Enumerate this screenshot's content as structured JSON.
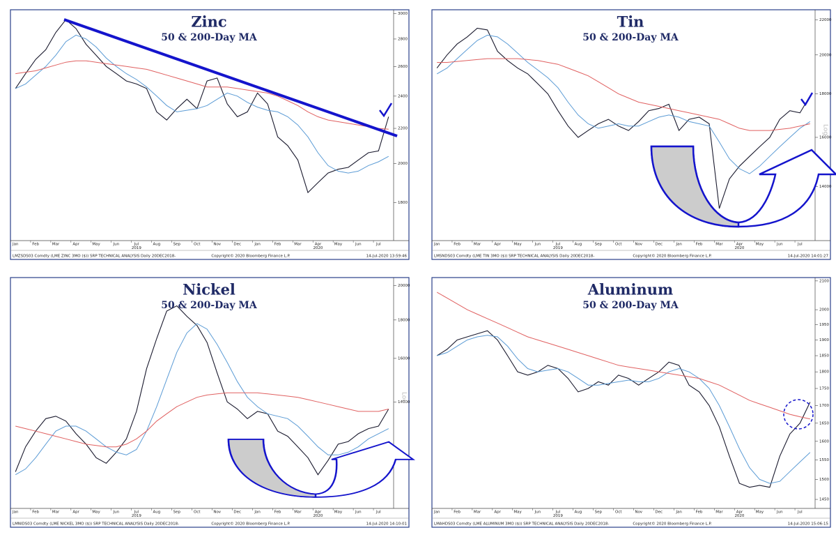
{
  "chart_data": [
    {
      "type": "line",
      "title": "Zinc",
      "subtitle": "50 & 200-Day MA",
      "log": true,
      "categories": [
        "Jan",
        null,
        "Feb",
        null,
        "Mar",
        null,
        "Apr",
        null,
        "May",
        null,
        "Jun",
        null,
        "Jul",
        null,
        "Aug",
        null,
        "Sep",
        null,
        "Oct",
        null,
        "Nov",
        null,
        "Dec",
        null,
        "Jan",
        null,
        "Feb",
        null,
        "Mar",
        null,
        "Apr",
        null,
        "May",
        null,
        "Jun",
        null,
        "Jul",
        null
      ],
      "year_labels": [
        "2019",
        "2020"
      ],
      "ylim": [
        1625,
        3030
      ],
      "yticks": [
        1800,
        2000,
        2200,
        2400,
        2600,
        2800,
        3000
      ],
      "series": [
        {
          "color": "#1a1a2e",
          "values": [
            2450,
            2550,
            2650,
            2720,
            2850,
            2950,
            2880,
            2760,
            2680,
            2600,
            2550,
            2500,
            2480,
            2450,
            2300,
            2250,
            2320,
            2380,
            2320,
            2500,
            2520,
            2350,
            2270,
            2300,
            2420,
            2350,
            2150,
            2100,
            2020,
            1850,
            1900,
            1950,
            1970,
            1980,
            2020,
            2060,
            2070,
            2270
          ]
        },
        {
          "color": "#5b9bd5",
          "values": [
            2450,
            2480,
            2540,
            2600,
            2680,
            2780,
            2830,
            2800,
            2740,
            2660,
            2600,
            2550,
            2510,
            2460,
            2400,
            2340,
            2300,
            2310,
            2320,
            2340,
            2380,
            2420,
            2400,
            2360,
            2330,
            2310,
            2300,
            2270,
            2220,
            2150,
            2060,
            1990,
            1960,
            1950,
            1960,
            1990,
            2010,
            2040
          ]
        },
        {
          "color": "#e06060",
          "values": [
            2550,
            2560,
            2570,
            2590,
            2610,
            2630,
            2640,
            2640,
            2630,
            2620,
            2610,
            2600,
            2590,
            2580,
            2560,
            2540,
            2520,
            2500,
            2480,
            2460,
            2460,
            2460,
            2450,
            2440,
            2430,
            2420,
            2400,
            2370,
            2340,
            2300,
            2270,
            2250,
            2240,
            2230,
            2220,
            2210,
            2200,
            2195
          ]
        }
      ],
      "footer": [
        "LMZSDS03 Comdty (LME ZINC 3MO ($)) SRP TECHNICAL ANALYSIS Daily 20DEC2018-",
        "Copyright© 2020 Bloomberg Finance L.P.",
        "14-Jul-2020 13:59:46"
      ]
    },
    {
      "type": "line",
      "title": "Tin",
      "subtitle": "50 & 200-Day MA",
      "log": true,
      "axis_note": "Log",
      "categories": [
        "Jan",
        null,
        "Feb",
        null,
        "Mar",
        null,
        "Apr",
        null,
        "May",
        null,
        "Jun",
        null,
        "Jul",
        null,
        "Aug",
        null,
        "Sep",
        null,
        "Oct",
        null,
        "Nov",
        null,
        "Dec",
        null,
        "Jan",
        null,
        "Feb",
        null,
        "Mar",
        null,
        "Apr",
        null,
        "May",
        null,
        "Jun",
        null,
        "Jul",
        null
      ],
      "year_labels": [
        "2019",
        "2020"
      ],
      "ylim": [
        12100,
        22600
      ],
      "yticks": [
        14000,
        16000,
        18000,
        20000,
        22000
      ],
      "series": [
        {
          "color": "#1a1a2e",
          "values": [
            19300,
            20000,
            20600,
            21000,
            21500,
            21400,
            20200,
            19700,
            19300,
            19000,
            18500,
            18000,
            17200,
            16500,
            16000,
            16300,
            16600,
            16800,
            16500,
            16300,
            16700,
            17200,
            17300,
            17500,
            16300,
            16800,
            16900,
            16600,
            13200,
            14300,
            14800,
            15200,
            15600,
            16000,
            16800,
            17200,
            17100,
            17900
          ]
        },
        {
          "color": "#5b9bd5",
          "values": [
            19000,
            19300,
            19800,
            20300,
            20800,
            21100,
            21000,
            20600,
            20100,
            19600,
            19200,
            18800,
            18300,
            17600,
            17000,
            16600,
            16400,
            16500,
            16600,
            16500,
            16500,
            16700,
            16900,
            17000,
            16900,
            16700,
            16600,
            16500,
            15800,
            15100,
            14700,
            14500,
            14800,
            15200,
            15600,
            16000,
            16400,
            16700
          ]
        },
        {
          "color": "#e06060",
          "values": [
            19600,
            19600,
            19650,
            19700,
            19750,
            19800,
            19800,
            19800,
            19800,
            19750,
            19700,
            19600,
            19500,
            19300,
            19100,
            18900,
            18600,
            18300,
            18000,
            17800,
            17600,
            17500,
            17400,
            17300,
            17200,
            17100,
            17000,
            16900,
            16800,
            16600,
            16400,
            16300,
            16300,
            16300,
            16350,
            16400,
            16500,
            16600
          ]
        }
      ],
      "footer": [
        "LMSNDS03 Comdty (LME TIN 3MO ($)) SRP TECHNICAL ANALYSIS Daily 20DEC2018-",
        "Copyright© 2020 Bloomberg Finance L.P.",
        "14-Jul-2020 14:01:27"
      ]
    },
    {
      "type": "line",
      "title": "Nickel",
      "subtitle": "50 & 200-Day MA",
      "log": true,
      "axis_note": "Log",
      "categories": [
        "Jan",
        null,
        "Feb",
        null,
        "Mar",
        null,
        "Apr",
        null,
        "May",
        null,
        "Jun",
        null,
        "Jul",
        null,
        "Aug",
        null,
        "Sep",
        null,
        "Oct",
        null,
        "Nov",
        null,
        "Dec",
        null,
        "Jan",
        null,
        "Feb",
        null,
        "Mar",
        null,
        "Apr",
        null,
        "May",
        null,
        "Jun",
        null,
        "Jul",
        null
      ],
      "year_labels": [
        "2019",
        "2020"
      ],
      "ylim": [
        10100,
        20500
      ],
      "yticks": [
        14000,
        16000,
        18000,
        20000
      ],
      "series": [
        {
          "color": "#1a1a2e",
          "values": [
            11300,
            12200,
            12800,
            13300,
            13400,
            13200,
            12700,
            12300,
            11800,
            11600,
            12000,
            12500,
            13600,
            15500,
            17000,
            18500,
            18800,
            18200,
            17700,
            16800,
            15300,
            14000,
            13700,
            13300,
            13600,
            13500,
            12800,
            12600,
            12200,
            11800,
            11200,
            11700,
            12300,
            12400,
            12700,
            12900,
            13000,
            13700
          ]
        },
        {
          "color": "#5b9bd5",
          "values": [
            11200,
            11400,
            11800,
            12300,
            12800,
            13000,
            13000,
            12800,
            12500,
            12200,
            12000,
            11900,
            12100,
            12800,
            13800,
            15000,
            16300,
            17300,
            17800,
            17500,
            16700,
            15800,
            14900,
            14200,
            13800,
            13500,
            13400,
            13300,
            13000,
            12600,
            12200,
            11900,
            11900,
            12000,
            12200,
            12500,
            12700,
            12900
          ]
        },
        {
          "color": "#e06060",
          "values": [
            13000,
            12900,
            12800,
            12700,
            12600,
            12500,
            12400,
            12300,
            12250,
            12200,
            12200,
            12300,
            12500,
            12800,
            13200,
            13500,
            13800,
            14000,
            14200,
            14300,
            14350,
            14400,
            14400,
            14400,
            14400,
            14350,
            14300,
            14250,
            14200,
            14100,
            14000,
            13900,
            13800,
            13700,
            13600,
            13600,
            13600,
            13700
          ]
        }
      ],
      "footer": [
        "LMNIDS03 Comdty (LME NICKEL 3MO ($)) SRP TECHNICAL ANALYSIS Daily 20DEC2018-",
        "Copyright© 2020 Bloomberg Finance L.P.",
        "14-Jul-2020 14:10:01"
      ]
    },
    {
      "type": "line",
      "title": "Aluminum",
      "subtitle": "50 & 200-Day MA",
      "log": true,
      "categories": [
        "Jan",
        null,
        "Feb",
        null,
        "Mar",
        null,
        "Apr",
        null,
        "May",
        null,
        "Jun",
        null,
        "Jul",
        null,
        "Aug",
        null,
        "Sep",
        null,
        "Oct",
        null,
        "Nov",
        null,
        "Dec",
        null,
        "Jan",
        null,
        "Feb",
        null,
        "Mar",
        null,
        "Apr",
        null,
        "May",
        null,
        "Jun",
        null,
        "Jul",
        null
      ],
      "year_labels": [
        "2019",
        "2020"
      ],
      "ylim": [
        1428,
        2112
      ],
      "yticks": [
        1450,
        1500,
        1550,
        1600,
        1650,
        1700,
        1750,
        1800,
        1850,
        1900,
        1950,
        2000,
        2100
      ],
      "series": [
        {
          "color": "#1a1a2e",
          "values": [
            1850,
            1870,
            1900,
            1910,
            1920,
            1930,
            1900,
            1850,
            1800,
            1790,
            1800,
            1820,
            1810,
            1780,
            1740,
            1750,
            1770,
            1760,
            1790,
            1780,
            1760,
            1780,
            1800,
            1830,
            1820,
            1760,
            1740,
            1700,
            1640,
            1560,
            1490,
            1480,
            1485,
            1480,
            1560,
            1620,
            1650,
            1710
          ]
        },
        {
          "color": "#5b9bd5",
          "values": [
            1850,
            1860,
            1880,
            1900,
            1910,
            1915,
            1910,
            1880,
            1840,
            1810,
            1800,
            1805,
            1810,
            1800,
            1780,
            1760,
            1760,
            1765,
            1770,
            1775,
            1770,
            1770,
            1780,
            1800,
            1810,
            1800,
            1780,
            1750,
            1700,
            1640,
            1580,
            1530,
            1500,
            1490,
            1495,
            1520,
            1545,
            1570
          ]
        },
        {
          "color": "#e06060",
          "values": [
            2060,
            2040,
            2020,
            2000,
            1985,
            1970,
            1955,
            1940,
            1925,
            1910,
            1900,
            1890,
            1880,
            1870,
            1860,
            1850,
            1840,
            1830,
            1820,
            1815,
            1810,
            1805,
            1800,
            1795,
            1790,
            1785,
            1780,
            1770,
            1760,
            1745,
            1730,
            1715,
            1705,
            1695,
            1685,
            1675,
            1668,
            1662
          ]
        }
      ],
      "footer": [
        "LMAHDS03 Comdty (LME ALUMINUM 3MO ($)) SRP TECHNICAL ANALYSIS Daily 20DEC2018-",
        "Copyright© 2020 Bloomberg Finance L.P.",
        "14-Jul-2020 15:06:15"
      ]
    }
  ]
}
